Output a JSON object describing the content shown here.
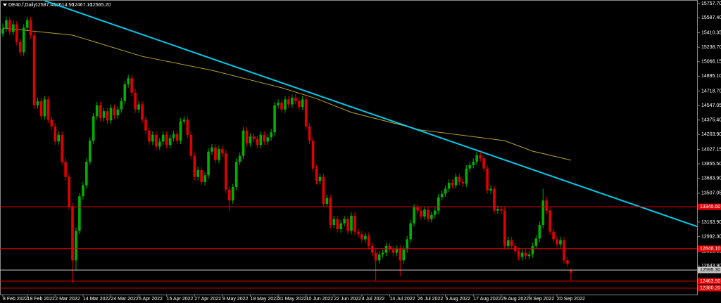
{
  "chart_data": {
    "type": "candlestick",
    "symbol": "DE40.f,Daily",
    "header_values": [
      "12587.40",
      "12614.50",
      "12467.10",
      "12565.20"
    ],
    "up_color": "#00b000",
    "down_color": "#e00000",
    "ylim": [
      12296,
      15799
    ],
    "yticks": [
      {
        "value": 15757.7,
        "label": "15757.70"
      },
      {
        "value": 15587.4,
        "label": "15587.40"
      },
      {
        "value": 15410.35,
        "label": "15410.35"
      },
      {
        "value": 15238.7,
        "label": "15238.70"
      },
      {
        "value": 15066.15,
        "label": "15066.15"
      },
      {
        "value": 14895.1,
        "label": "14895.10"
      },
      {
        "value": 14718.7,
        "label": "14718.70"
      },
      {
        "value": 14547.05,
        "label": "14547.05"
      },
      {
        "value": 14375.4,
        "label": "14375.40"
      },
      {
        "value": 14203.9,
        "label": "14203.90"
      },
      {
        "value": 14027.15,
        "label": "14027.15"
      },
      {
        "value": 13855.5,
        "label": "13855.50"
      },
      {
        "value": 13683.9,
        "label": "13683.90"
      },
      {
        "value": 13507.05,
        "label": "13507.05"
      },
      {
        "value": 13163.9,
        "label": "13163.90"
      },
      {
        "value": 12992.3,
        "label": "12992.30"
      },
      {
        "value": 12815.55,
        "label": "12815.55"
      },
      {
        "value": 12643.9,
        "label": "12643.90"
      },
      {
        "value": 12472.3,
        "label": "12472.30"
      }
    ],
    "categories": [
      "8 Feb 2022",
      null,
      null,
      null,
      null,
      null,
      null,
      "18 Feb 2022",
      null,
      null,
      null,
      null,
      null,
      null,
      null,
      "2 Mar 2022",
      null,
      null,
      null,
      null,
      null,
      null,
      null,
      "14 Mar 2022",
      null,
      null,
      null,
      null,
      null,
      null,
      null,
      "24 Mar 2022",
      null,
      null,
      null,
      null,
      null,
      null,
      null,
      "5 Apr 2022",
      null,
      null,
      null,
      null,
      null,
      null,
      null,
      "15 Apr 2022",
      null,
      null,
      null,
      null,
      null,
      null,
      null,
      "27 Apr 2022",
      null,
      null,
      null,
      null,
      null,
      null,
      null,
      "9 May 2022",
      null,
      null,
      null,
      null,
      null,
      null,
      null,
      "19 May 2022",
      null,
      null,
      null,
      null,
      null,
      null,
      null,
      "31 May 2022",
      null,
      null,
      null,
      null,
      null,
      null,
      null,
      "10 Jun 2022",
      null,
      null,
      null,
      null,
      null,
      null,
      null,
      "22 Jun 2022",
      null,
      null,
      null,
      null,
      null,
      null,
      null,
      "4 Jul 2022",
      null,
      null,
      null,
      null,
      null,
      null,
      null,
      "14 Jul 2022",
      null,
      null,
      null,
      null,
      null,
      null,
      null,
      "26 Jul 2022",
      null,
      null,
      null,
      null,
      null,
      null,
      null,
      "5 Aug 2022",
      null,
      null,
      null,
      null,
      null,
      null,
      null,
      "17 Aug 2022",
      null,
      null,
      null,
      null,
      null,
      null,
      null,
      "29 Aug 2022",
      null,
      null,
      null,
      null,
      null,
      null,
      null,
      "8 Sep 2022",
      null,
      null,
      null,
      null,
      null,
      null,
      null,
      "20 Sep 2022",
      null,
      null,
      null,
      null
    ],
    "candles": [
      [
        15400,
        15520,
        15360,
        15460
      ],
      [
        15460,
        15600,
        15420,
        15560
      ],
      [
        15560,
        15600,
        15380,
        15420
      ],
      [
        15420,
        15560,
        15380,
        15510
      ],
      [
        15510,
        15550,
        15260,
        15300
      ],
      [
        15300,
        15340,
        15140,
        15180
      ],
      [
        15180,
        15510,
        15140,
        15470
      ],
      [
        15470,
        15600,
        15430,
        15560
      ],
      [
        15560,
        15600,
        15340,
        15380
      ],
      [
        15380,
        15420,
        14510,
        14550
      ],
      [
        14550,
        14640,
        14510,
        14600
      ],
      [
        14600,
        14640,
        14380,
        14420
      ],
      [
        14420,
        14660,
        14380,
        14620
      ],
      [
        14620,
        14660,
        14340,
        14380
      ],
      [
        14380,
        14420,
        14260,
        14300
      ],
      [
        14300,
        14340,
        14080,
        14120
      ],
      [
        14120,
        14240,
        14080,
        14200
      ],
      [
        14200,
        14240,
        13840,
        13880
      ],
      [
        13880,
        13920,
        13660,
        13700
      ],
      [
        13700,
        13740,
        13310,
        13350
      ],
      [
        13350,
        13390,
        12440,
        12710
      ],
      [
        12710,
        13100,
        12600,
        13060
      ],
      [
        13060,
        13510,
        13020,
        13470
      ],
      [
        13470,
        13640,
        13430,
        13600
      ],
      [
        13600,
        13920,
        13560,
        13880
      ],
      [
        13880,
        14170,
        13840,
        14130
      ],
      [
        14130,
        14460,
        14090,
        14420
      ],
      [
        14420,
        14590,
        14380,
        14550
      ],
      [
        14550,
        14590,
        14360,
        14400
      ],
      [
        14400,
        14520,
        14360,
        14480
      ],
      [
        14480,
        14520,
        14330,
        14370
      ],
      [
        14370,
        14560,
        14330,
        14520
      ],
      [
        14520,
        14560,
        14390,
        14430
      ],
      [
        14430,
        14540,
        14390,
        14500
      ],
      [
        14500,
        14640,
        14460,
        14600
      ],
      [
        14600,
        14840,
        14560,
        14800
      ],
      [
        14800,
        14910,
        14760,
        14870
      ],
      [
        14870,
        14910,
        14660,
        14700
      ],
      [
        14700,
        14740,
        14460,
        14500
      ],
      [
        14500,
        14600,
        14460,
        14560
      ],
      [
        14560,
        14600,
        14340,
        14380
      ],
      [
        14380,
        14420,
        14210,
        14250
      ],
      [
        14250,
        14290,
        14080,
        14120
      ],
      [
        14120,
        14240,
        14080,
        14200
      ],
      [
        14200,
        14240,
        14020,
        14060
      ],
      [
        14060,
        14160,
        14020,
        14120
      ],
      [
        14120,
        14240,
        14080,
        14200
      ],
      [
        14200,
        14240,
        14040,
        14080
      ],
      [
        14080,
        14200,
        14040,
        14160
      ],
      [
        14160,
        14250,
        14120,
        14210
      ],
      [
        14210,
        14250,
        14090,
        14130
      ],
      [
        14130,
        14400,
        14090,
        14360
      ],
      [
        14360,
        14420,
        14320,
        14380
      ],
      [
        14380,
        14420,
        14160,
        14200
      ],
      [
        14200,
        14240,
        13910,
        13950
      ],
      [
        13950,
        13990,
        13660,
        13700
      ],
      [
        13700,
        13820,
        13660,
        13780
      ],
      [
        13780,
        13820,
        13600,
        13640
      ],
      [
        13640,
        13760,
        13600,
        13720
      ],
      [
        13720,
        14040,
        13680,
        14000
      ],
      [
        14000,
        14090,
        13960,
        14050
      ],
      [
        14050,
        14090,
        13860,
        13900
      ],
      [
        13900,
        14070,
        13860,
        14030
      ],
      [
        14030,
        14070,
        13940,
        13980
      ],
      [
        13980,
        14020,
        13510,
        13550
      ],
      [
        13550,
        13590,
        13300,
        13420
      ],
      [
        13420,
        13620,
        13380,
        13580
      ],
      [
        13580,
        13920,
        13540,
        13880
      ],
      [
        13880,
        13990,
        13840,
        13950
      ],
      [
        13950,
        14290,
        13910,
        14250
      ],
      [
        14250,
        14290,
        14060,
        14100
      ],
      [
        14100,
        14220,
        14060,
        14180
      ],
      [
        14180,
        14220,
        14110,
        14150
      ],
      [
        14150,
        14190,
        14040,
        14080
      ],
      [
        14080,
        14240,
        14040,
        14200
      ],
      [
        14200,
        14240,
        14080,
        14120
      ],
      [
        14120,
        14210,
        14080,
        14170
      ],
      [
        14170,
        14270,
        14130,
        14230
      ],
      [
        14230,
        14590,
        14190,
        14550
      ],
      [
        14550,
        14620,
        14510,
        14580
      ],
      [
        14580,
        14620,
        14460,
        14500
      ],
      [
        14500,
        14660,
        14460,
        14620
      ],
      [
        14620,
        14660,
        14520,
        14560
      ],
      [
        14560,
        14680,
        14520,
        14640
      ],
      [
        14640,
        14680,
        14560,
        14600
      ],
      [
        14600,
        14640,
        14490,
        14530
      ],
      [
        14530,
        14660,
        14490,
        14620
      ],
      [
        14620,
        14660,
        14260,
        14300
      ],
      [
        14300,
        14340,
        14090,
        14130
      ],
      [
        14130,
        14170,
        13760,
        13800
      ],
      [
        13800,
        13840,
        13610,
        13650
      ],
      [
        13650,
        13740,
        13610,
        13700
      ],
      [
        13700,
        13740,
        13340,
        13380
      ],
      [
        13380,
        13490,
        13340,
        13450
      ],
      [
        13450,
        13490,
        13090,
        13130
      ],
      [
        13130,
        13240,
        13090,
        13200
      ],
      [
        13200,
        13240,
        13040,
        13080
      ],
      [
        13080,
        13190,
        13040,
        13150
      ],
      [
        13150,
        13240,
        13110,
        13200
      ],
      [
        13200,
        13240,
        13020,
        13060
      ],
      [
        13060,
        13280,
        13020,
        13240
      ],
      [
        13240,
        13280,
        13010,
        13050
      ],
      [
        13050,
        13090,
        12980,
        13020
      ],
      [
        13020,
        13060,
        12920,
        12960
      ],
      [
        12960,
        13040,
        12920,
        13000
      ],
      [
        13000,
        13040,
        12840,
        12880
      ],
      [
        12880,
        12920,
        12760,
        12800
      ],
      [
        12800,
        12840,
        12470,
        12710
      ],
      [
        12710,
        12820,
        12670,
        12780
      ],
      [
        12780,
        12840,
        12740,
        12800
      ],
      [
        12800,
        12920,
        12760,
        12880
      ],
      [
        12880,
        12920,
        12800,
        12840
      ],
      [
        12840,
        12880,
        12760,
        12800
      ],
      [
        12800,
        12890,
        12760,
        12850
      ],
      [
        12850,
        12890,
        12520,
        12710
      ],
      [
        12710,
        12880,
        12670,
        12840
      ],
      [
        12840,
        13000,
        12800,
        12960
      ],
      [
        12960,
        13190,
        12920,
        13150
      ],
      [
        13150,
        13380,
        13110,
        13340
      ],
      [
        13340,
        13380,
        13260,
        13300
      ],
      [
        13300,
        13340,
        13190,
        13230
      ],
      [
        13230,
        13350,
        13190,
        13310
      ],
      [
        13310,
        13350,
        13160,
        13200
      ],
      [
        13200,
        13290,
        13160,
        13250
      ],
      [
        13250,
        13340,
        13210,
        13300
      ],
      [
        13300,
        13500,
        13260,
        13460
      ],
      [
        13460,
        13540,
        13420,
        13500
      ],
      [
        13500,
        13600,
        13460,
        13560
      ],
      [
        13560,
        13670,
        13520,
        13630
      ],
      [
        13630,
        13670,
        13560,
        13600
      ],
      [
        13600,
        13740,
        13560,
        13700
      ],
      [
        13700,
        13740,
        13600,
        13640
      ],
      [
        13640,
        13680,
        13580,
        13620
      ],
      [
        13620,
        13840,
        13580,
        13800
      ],
      [
        13800,
        13880,
        13760,
        13840
      ],
      [
        13840,
        13920,
        13800,
        13880
      ],
      [
        13880,
        14000,
        13840,
        13960
      ],
      [
        13960,
        14000,
        13880,
        13920
      ],
      [
        13920,
        13960,
        13760,
        13800
      ],
      [
        13800,
        13840,
        13500,
        13540
      ],
      [
        13540,
        13600,
        13500,
        13560
      ],
      [
        13560,
        13600,
        13260,
        13300
      ],
      [
        13300,
        13360,
        13260,
        13320
      ],
      [
        13320,
        13360,
        13260,
        13300
      ],
      [
        13300,
        13340,
        12840,
        12880
      ],
      [
        12880,
        12990,
        12840,
        12950
      ],
      [
        12950,
        12990,
        12840,
        12880
      ],
      [
        12880,
        12920,
        12780,
        12820
      ],
      [
        12820,
        12860,
        12710,
        12750
      ],
      [
        12750,
        12840,
        12710,
        12800
      ],
      [
        12800,
        12840,
        12720,
        12760
      ],
      [
        12760,
        12820,
        12720,
        12780
      ],
      [
        12780,
        12920,
        12740,
        12880
      ],
      [
        12880,
        13010,
        12840,
        12970
      ],
      [
        12970,
        13170,
        12930,
        13130
      ],
      [
        13130,
        13560,
        13090,
        13420
      ],
      [
        13420,
        13460,
        13260,
        13300
      ],
      [
        13300,
        13340,
        13010,
        13050
      ],
      [
        13050,
        13090,
        12920,
        12960
      ],
      [
        12960,
        13000,
        12860,
        12900
      ],
      [
        12900,
        12990,
        12860,
        12950
      ],
      [
        12950,
        12990,
        12670,
        12710
      ],
      [
        12710,
        12750,
        12630,
        12670
      ],
      [
        12587.4,
        12614.5,
        12467.1,
        12565.2
      ]
    ],
    "lines": [
      {
        "color": "#b8a030",
        "x": [
          0,
          20,
          40,
          60,
          80,
          90,
          100,
          120,
          136,
          144,
          152,
          163
        ],
        "values": [
          15466,
          15382,
          15130,
          14965,
          14757,
          14630,
          14465,
          14256,
          14173,
          14130,
          14006,
          13898
        ]
      },
      {
        "color": "#00c8e8",
        "x": [
          12,
          200
        ],
        "values": [
          15790,
          13100
        ]
      }
    ],
    "levels": [
      {
        "value": 13345.6,
        "label": "13345.60",
        "color": "#e00000"
      },
      {
        "value": 12848.1,
        "label": "12848.10",
        "color": "#e00000"
      },
      {
        "value": 12595.3,
        "label": "12595.30",
        "color": "#c8c8c8"
      },
      {
        "value": 12463.5,
        "label": "12463.50",
        "color": "#e00000"
      },
      {
        "value": 12380.2,
        "label": "12380.20",
        "color": "#e00000"
      }
    ]
  }
}
